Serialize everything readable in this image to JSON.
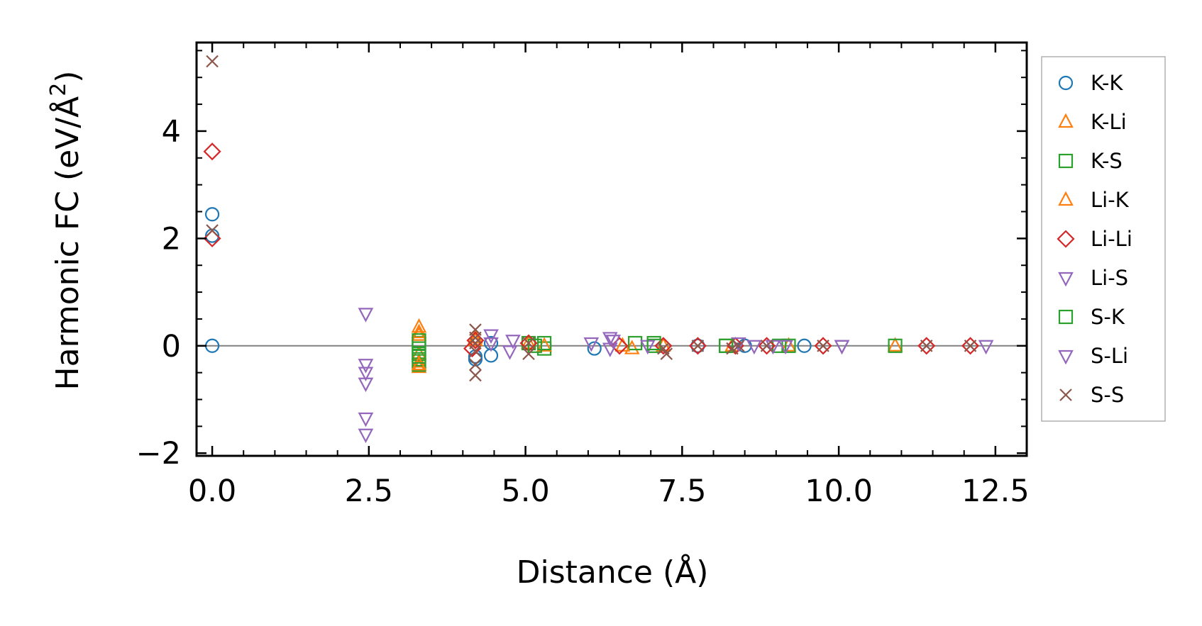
{
  "chart_data": {
    "type": "scatter",
    "title": "",
    "xlabel": "Distance (Å)",
    "ylabel_main": "Harmonic FC (eV/Å",
    "ylabel_sup": "2",
    "ylabel_close": ")",
    "xlim": [
      -0.25,
      13.0
    ],
    "ylim": [
      -2.05,
      5.65
    ],
    "xticks": [
      0.0,
      2.5,
      5.0,
      7.5,
      10.0,
      12.5
    ],
    "xtick_labels": [
      "0.0",
      "2.5",
      "5.0",
      "7.5",
      "10.0",
      "12.5"
    ],
    "yticks": [
      -2,
      0,
      2,
      4
    ],
    "ytick_labels": [
      "−2",
      "0",
      "2",
      "4"
    ],
    "reference_line_y": 0,
    "legend_position": "right",
    "series": [
      {
        "name": "K-K",
        "marker": "circle",
        "color": "#1f77b4",
        "x": [
          0.0,
          0.0,
          0.0,
          4.2,
          4.2,
          4.45,
          4.45,
          6.1,
          7.75,
          8.5,
          9.45
        ],
        "y": [
          2.45,
          2.05,
          0.0,
          -0.25,
          -0.2,
          -0.18,
          0.05,
          -0.05,
          0.0,
          0.0,
          0.0
        ]
      },
      {
        "name": "K-Li",
        "marker": "triangle-up",
        "color": "#ff7f0e",
        "x": [
          3.3,
          3.3,
          3.3,
          3.3,
          3.3,
          4.2,
          5.05,
          6.7,
          7.2,
          9.2,
          10.9
        ],
        "y": [
          0.35,
          0.2,
          -0.15,
          -0.3,
          -0.4,
          0.1,
          0.05,
          -0.05,
          0.0,
          0.0,
          0.0
        ]
      },
      {
        "name": "K-S",
        "marker": "square",
        "color": "#2ca02c",
        "x": [
          3.3,
          3.3,
          3.3,
          3.3,
          3.3,
          5.05,
          5.3,
          6.75,
          7.05,
          8.2,
          9.05,
          10.9
        ],
        "y": [
          0.05,
          -0.05,
          -0.15,
          -0.25,
          -0.35,
          0.05,
          -0.05,
          0.05,
          0.0,
          0.0,
          0.0,
          0.0
        ]
      },
      {
        "name": "Li-K",
        "marker": "triangle-up",
        "color": "#ff7f0e",
        "x": [
          3.3,
          3.3,
          4.2,
          5.3,
          6.55,
          8.3
        ],
        "y": [
          0.25,
          -0.35,
          0.15,
          0.0,
          0.0,
          0.0
        ]
      },
      {
        "name": "Li-Li",
        "marker": "diamond",
        "color": "#d62728",
        "x": [
          0.0,
          0.0,
          4.2,
          4.15,
          5.05,
          6.5,
          7.2,
          7.75,
          8.35,
          8.85,
          9.75,
          11.4,
          12.1
        ],
        "y": [
          3.62,
          2.0,
          0.1,
          -0.05,
          0.05,
          0.0,
          0.0,
          0.0,
          0.0,
          0.0,
          0.0,
          0.0,
          0.0
        ]
      },
      {
        "name": "Li-S",
        "marker": "triangle-down",
        "color": "#9467bd",
        "x": [
          2.45,
          2.45,
          2.45,
          2.45,
          2.45,
          2.45,
          4.45,
          4.8,
          6.05,
          6.35,
          6.95,
          8.4,
          8.95,
          10.05,
          12.35
        ],
        "y": [
          0.6,
          -0.35,
          -0.5,
          -0.7,
          -1.35,
          -1.65,
          0.2,
          0.1,
          0.05,
          0.15,
          0.0,
          0.05,
          0.0,
          0.0,
          0.0
        ]
      },
      {
        "name": "S-K",
        "marker": "square",
        "color": "#2ca02c",
        "x": [
          3.3,
          3.3,
          5.15,
          5.3,
          7.05,
          8.2,
          9.2
        ],
        "y": [
          0.1,
          -0.2,
          0.0,
          0.05,
          0.05,
          0.0,
          0.0
        ]
      },
      {
        "name": "S-Li",
        "marker": "triangle-down",
        "color": "#9467bd",
        "x": [
          4.45,
          4.75,
          6.4,
          6.35,
          8.65,
          9.15,
          10.05
        ],
        "y": [
          0.05,
          -0.1,
          0.1,
          -0.05,
          0.0,
          0.0,
          0.0
        ]
      },
      {
        "name": "S-S",
        "marker": "x",
        "color": "#8c564b",
        "x": [
          0.0,
          0.0,
          4.2,
          4.2,
          4.2,
          4.2,
          4.2,
          4.2,
          5.05,
          5.05,
          7.2,
          7.25,
          7.75,
          8.3,
          8.4,
          8.85,
          9.75,
          11.4,
          12.1
        ],
        "y": [
          5.3,
          2.15,
          0.3,
          0.15,
          0.05,
          -0.1,
          -0.35,
          -0.55,
          0.05,
          -0.15,
          -0.05,
          -0.15,
          0.0,
          -0.05,
          0.0,
          0.0,
          0.0,
          0.0,
          0.0
        ]
      }
    ]
  }
}
